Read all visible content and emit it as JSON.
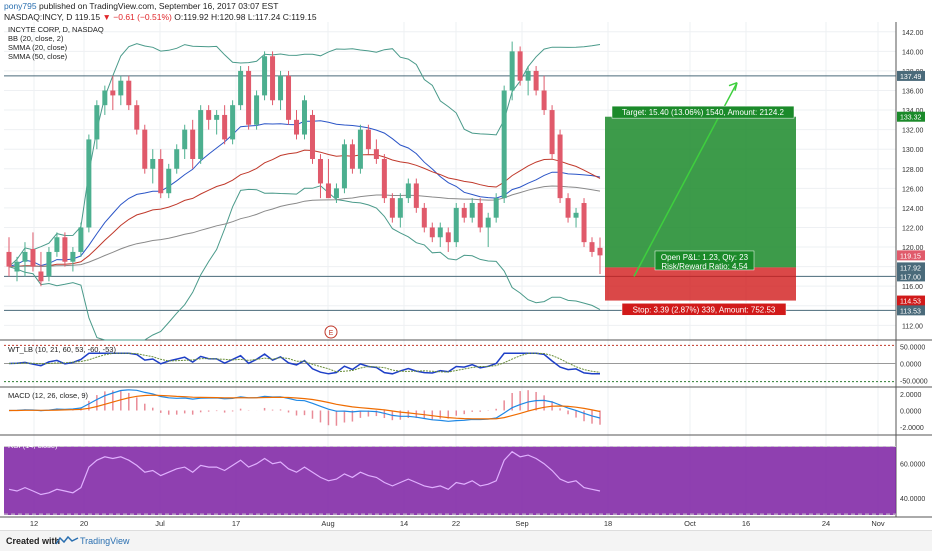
{
  "header": {
    "author": "pony795",
    "published": "published on TradingView.com, September 16, 2017 03:07 EST",
    "symbol": "NASDAQ:INCY, D",
    "last": "119.15",
    "change": "−0.61 (−0.51%)",
    "o": "O:119.92",
    "h": "H:120.98",
    "l": "L:117.24",
    "c": "C:119.15"
  },
  "legend": {
    "title": "INCYTE CORP, D, NASDAQ",
    "bb": "BB (20, close, 2)",
    "smma20": "SMMA (20, close)",
    "smma50": "SMMA (50, close)"
  },
  "footer": {
    "created": "Created with",
    "brand": "TradingView"
  },
  "colors": {
    "up": "#4caf8f",
    "down": "#e05a6b",
    "bb": "#4a9a8a",
    "smma20": "#c0392b",
    "smma50": "#8a8a8a",
    "profit": "#2e7d32",
    "loss": "#c62828",
    "arrow": "#3ecf3e",
    "macd": "#1e88e5",
    "signal": "#ef6c00",
    "rsi": "#9c27b0"
  },
  "chart_data": [
    {
      "type": "candlestick",
      "title": "INCYTE CORP, D, NASDAQ",
      "ylim": [
        110.5,
        143
      ],
      "y_ticks": [
        "142.00",
        "140.00",
        "138.00",
        "136.00",
        "134.00",
        "132.00",
        "130.00",
        "128.00",
        "126.00",
        "124.00",
        "122.00",
        "120.00",
        "118.00",
        "116.00",
        "114.00",
        "112.00"
      ],
      "x_ticks": [
        "12",
        "20",
        "Jul",
        "17",
        "Aug",
        "14",
        "22",
        "Sep",
        "18",
        "Oct",
        "16",
        "24",
        "Nov"
      ],
      "price_labels": [
        "137.49",
        "133.32",
        "119.15",
        "117.92",
        "117.00",
        "114.53",
        "113.53"
      ],
      "ohlc": [
        [
          119.5,
          121.0,
          117.0,
          118.0
        ],
        [
          117.5,
          119.0,
          116.5,
          118.5
        ],
        [
          118.5,
          120.5,
          117.0,
          119.5
        ],
        [
          119.8,
          121.5,
          117.5,
          118.0
        ],
        [
          117.5,
          119.5,
          116.0,
          116.5
        ],
        [
          117.0,
          120.0,
          116.5,
          119.5
        ],
        [
          119.5,
          121.5,
          119.0,
          121.0
        ],
        [
          121.0,
          121.5,
          118.0,
          118.5
        ],
        [
          118.5,
          120.0,
          117.5,
          119.5
        ],
        [
          119.5,
          122.5,
          119.0,
          122.0
        ],
        [
          122.0,
          131.5,
          121.5,
          131.0
        ],
        [
          131.0,
          135.0,
          130.0,
          134.5
        ],
        [
          134.5,
          136.5,
          133.5,
          136.0
        ],
        [
          136.0,
          137.5,
          134.0,
          135.5
        ],
        [
          135.5,
          137.5,
          134.5,
          137.0
        ],
        [
          137.0,
          137.5,
          134.0,
          134.5
        ],
        [
          134.5,
          135.0,
          131.5,
          132.0
        ],
        [
          132.0,
          132.5,
          127.5,
          128.0
        ],
        [
          128.0,
          130.0,
          126.5,
          129.0
        ],
        [
          129.0,
          130.0,
          125.0,
          125.5
        ],
        [
          125.5,
          128.5,
          125.0,
          128.0
        ],
        [
          128.0,
          130.5,
          127.5,
          130.0
        ],
        [
          130.0,
          132.5,
          129.0,
          132.0
        ],
        [
          132.0,
          133.0,
          128.0,
          129.0
        ],
        [
          129.0,
          134.5,
          128.5,
          134.0
        ],
        [
          134.0,
          134.5,
          132.0,
          133.0
        ],
        [
          133.0,
          134.0,
          131.5,
          133.5
        ],
        [
          133.5,
          134.5,
          130.5,
          131.0
        ],
        [
          131.0,
          135.0,
          130.5,
          134.5
        ],
        [
          134.5,
          138.5,
          134.0,
          138.0
        ],
        [
          138.0,
          138.5,
          132.0,
          132.5
        ],
        [
          132.5,
          136.0,
          132.0,
          135.5
        ],
        [
          135.5,
          140.0,
          135.0,
          139.5
        ],
        [
          139.5,
          140.0,
          134.5,
          135.0
        ],
        [
          135.0,
          138.0,
          134.0,
          137.5
        ],
        [
          137.5,
          138.0,
          132.5,
          133.0
        ],
        [
          133.0,
          134.0,
          131.0,
          131.5
        ],
        [
          131.5,
          135.5,
          131.0,
          135.0
        ],
        [
          133.5,
          134.0,
          128.5,
          129.0
        ],
        [
          129.0,
          129.5,
          125.0,
          126.5
        ],
        [
          126.5,
          129.0,
          125.0,
          125.0
        ],
        [
          125.0,
          126.5,
          124.5,
          126.0
        ],
        [
          126.0,
          131.0,
          125.5,
          130.5
        ],
        [
          130.5,
          131.0,
          127.5,
          128.0
        ],
        [
          128.0,
          132.5,
          127.5,
          132.0
        ],
        [
          132.0,
          132.5,
          129.5,
          130.0
        ],
        [
          130.0,
          131.0,
          128.5,
          129.0
        ],
        [
          129.0,
          129.5,
          124.5,
          125.0
        ],
        [
          125.0,
          125.5,
          122.5,
          123.0
        ],
        [
          123.0,
          125.5,
          122.0,
          125.0
        ],
        [
          125.0,
          127.0,
          124.5,
          126.5
        ],
        [
          126.5,
          127.0,
          123.5,
          124.0
        ],
        [
          124.0,
          124.5,
          121.5,
          122.0
        ],
        [
          122.0,
          122.5,
          120.5,
          121.0
        ],
        [
          121.0,
          122.5,
          120.0,
          122.0
        ],
        [
          121.5,
          122.0,
          119.5,
          120.5
        ],
        [
          120.5,
          124.5,
          120.0,
          124.0
        ],
        [
          124.0,
          124.5,
          122.5,
          123.0
        ],
        [
          123.0,
          125.0,
          122.5,
          124.5
        ],
        [
          124.5,
          125.0,
          121.5,
          122.0
        ],
        [
          122.0,
          123.5,
          120.0,
          123.0
        ],
        [
          123.0,
          125.5,
          122.5,
          125.0
        ],
        [
          125.0,
          136.5,
          124.5,
          136.0
        ],
        [
          136.0,
          141.0,
          135.0,
          140.0
        ],
        [
          140.0,
          140.5,
          136.5,
          137.0
        ],
        [
          137.0,
          138.5,
          135.5,
          138.0
        ],
        [
          138.0,
          138.5,
          135.5,
          136.0
        ],
        [
          136.0,
          137.5,
          133.5,
          134.0
        ],
        [
          134.0,
          134.5,
          129.0,
          129.5
        ],
        [
          131.5,
          132.0,
          124.5,
          125.0
        ],
        [
          125.0,
          125.5,
          122.5,
          123.0
        ],
        [
          123.0,
          124.0,
          122.0,
          123.5
        ],
        [
          124.5,
          125.0,
          120.0,
          120.5
        ],
        [
          120.5,
          121.0,
          119.0,
          119.5
        ],
        [
          119.92,
          120.98,
          117.24,
          119.15
        ]
      ]
    },
    {
      "type": "position",
      "target_label": "Target: 15.40 (13.06%) 1540, Amount: 2124.2",
      "stop_label": "Stop: 3.39 (2.87%) 339, Amount: 752.53",
      "pnl_label": "Open P&L: 1.23, Qty: 23",
      "rr_label": "Risk/Reward Ratio: 4.54",
      "entry": 117.92,
      "target": 133.32,
      "stop": 114.53,
      "arrow_from": [
        117.0,
        136.8
      ]
    },
    {
      "type": "line",
      "title": "WT_LB (10, 21, 60, 53, -60, -53)",
      "y_ticks": [
        "50.0000",
        "0.0000",
        "-50.0000"
      ],
      "ylim": [
        -60,
        60
      ]
    },
    {
      "type": "line",
      "title": "MACD (12, 26, close, 9)",
      "y_ticks": [
        "2.0000",
        "0.0000",
        "-2.0000"
      ],
      "ylim": [
        -2.6,
        2.6
      ]
    },
    {
      "type": "line",
      "title": "RSI (14, close)",
      "y_ticks": [
        "60.0000",
        "40.0000"
      ],
      "ylim": [
        30,
        75
      ],
      "values": [
        45,
        44,
        46,
        44,
        42,
        43,
        45,
        44,
        43,
        46,
        58,
        62,
        64,
        63,
        64,
        62,
        59,
        55,
        56,
        53,
        55,
        57,
        58,
        55,
        59,
        58,
        58,
        56,
        59,
        62,
        58,
        60,
        63,
        60,
        61,
        57,
        55,
        58,
        55,
        52,
        50,
        51,
        54,
        52,
        55,
        53,
        52,
        49,
        47,
        49,
        51,
        49,
        47,
        46,
        47,
        45,
        49,
        48,
        50,
        47,
        48,
        50,
        62,
        67,
        64,
        65,
        63,
        60,
        56,
        51,
        49,
        50,
        46,
        45,
        44
      ]
    }
  ]
}
